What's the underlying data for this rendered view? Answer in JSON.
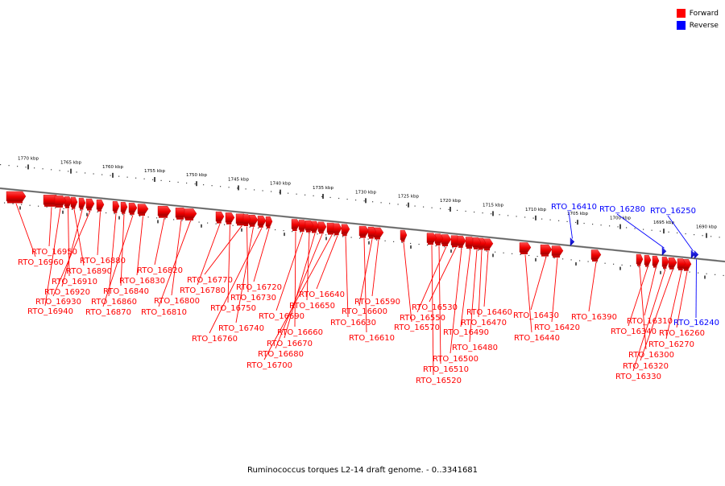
{
  "legend": {
    "forward_label": "Forward",
    "reverse_label": "Reverse",
    "forward_color": "#ff0000",
    "reverse_color": "#0000ff"
  },
  "caption": "Ruminococcus torques L2-14 draft genome. - 0..3341681",
  "scale": {
    "unit": "kbp",
    "ticks_kbp": [
      1770,
      1765,
      1760,
      1755,
      1750,
      1745,
      1740,
      1735,
      1730,
      1725,
      1720,
      1715,
      1710,
      1705,
      1700,
      1695,
      1690
    ]
  },
  "genes": [
    {
      "label": "RTO_16950",
      "strand": "forward"
    },
    {
      "label": "RTO_16960",
      "strand": "forward"
    },
    {
      "label": "RTO_16880",
      "strand": "forward"
    },
    {
      "label": "RTO_16890",
      "strand": "forward"
    },
    {
      "label": "RTO_16910",
      "strand": "forward"
    },
    {
      "label": "RTO_16920",
      "strand": "forward"
    },
    {
      "label": "RTO_16930",
      "strand": "forward"
    },
    {
      "label": "RTO_16940",
      "strand": "forward"
    },
    {
      "label": "RTO_16840",
      "strand": "forward"
    },
    {
      "label": "RTO_16860",
      "strand": "forward"
    },
    {
      "label": "RTO_16870",
      "strand": "forward"
    },
    {
      "label": "RTO_16830",
      "strand": "forward"
    },
    {
      "label": "RTO_16820",
      "strand": "forward"
    },
    {
      "label": "RTO_16800",
      "strand": "forward"
    },
    {
      "label": "RTO_16810",
      "strand": "forward"
    },
    {
      "label": "RTO_16770",
      "strand": "forward"
    },
    {
      "label": "RTO_16780",
      "strand": "forward"
    },
    {
      "label": "RTO_16750",
      "strand": "forward"
    },
    {
      "label": "RTO_16740",
      "strand": "forward"
    },
    {
      "label": "RTO_16760",
      "strand": "forward"
    },
    {
      "label": "RTO_16720",
      "strand": "forward"
    },
    {
      "label": "RTO_16730",
      "strand": "forward"
    },
    {
      "label": "RTO_16690",
      "strand": "forward"
    },
    {
      "label": "RTO_16670",
      "strand": "forward"
    },
    {
      "label": "RTO_16680",
      "strand": "forward"
    },
    {
      "label": "RTO_16700",
      "strand": "forward"
    },
    {
      "label": "RTO_16640",
      "strand": "forward"
    },
    {
      "label": "RTO_16650",
      "strand": "forward"
    },
    {
      "label": "RTO_16660",
      "strand": "forward"
    },
    {
      "label": "RTO_16630",
      "strand": "forward"
    },
    {
      "label": "RTO_16610",
      "strand": "forward"
    },
    {
      "label": "RTO_16590",
      "strand": "forward"
    },
    {
      "label": "RTO_16600",
      "strand": "forward"
    },
    {
      "label": "RTO_16570",
      "strand": "forward"
    },
    {
      "label": "RTO_16530",
      "strand": "forward"
    },
    {
      "label": "RTO_16550",
      "strand": "forward"
    },
    {
      "label": "RTO_16460",
      "strand": "forward"
    },
    {
      "label": "RTO_16470",
      "strand": "forward"
    },
    {
      "label": "RTO_16490",
      "strand": "forward"
    },
    {
      "label": "RTO_16480",
      "strand": "forward"
    },
    {
      "label": "RTO_16500",
      "strand": "forward"
    },
    {
      "label": "RTO_16510",
      "strand": "forward"
    },
    {
      "label": "RTO_16520",
      "strand": "forward"
    },
    {
      "label": "RTO_16430",
      "strand": "forward"
    },
    {
      "label": "RTO_16420",
      "strand": "forward"
    },
    {
      "label": "RTO_16440",
      "strand": "forward"
    },
    {
      "label": "RTO_16390",
      "strand": "forward"
    },
    {
      "label": "RTO_16410",
      "strand": "reverse"
    },
    {
      "label": "RTO_16280",
      "strand": "reverse"
    },
    {
      "label": "RTO_16250",
      "strand": "reverse"
    },
    {
      "label": "RTO_16240",
      "strand": "reverse"
    },
    {
      "label": "RTO_16310",
      "strand": "forward"
    },
    {
      "label": "RTO_16340",
      "strand": "forward"
    },
    {
      "label": "RTO_16260",
      "strand": "forward"
    },
    {
      "label": "RTO_16270",
      "strand": "forward"
    },
    {
      "label": "RTO_16300",
      "strand": "forward"
    },
    {
      "label": "RTO_16320",
      "strand": "forward"
    },
    {
      "label": "RTO_16330",
      "strand": "forward"
    }
  ]
}
